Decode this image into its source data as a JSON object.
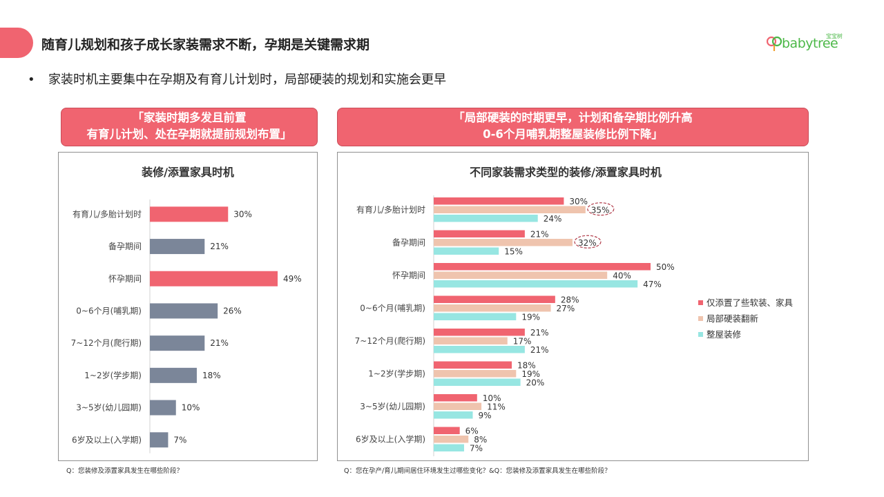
{
  "header": {
    "title": "随育儿规划和孩子成长家装需求不断，孕期是关键需求期",
    "logo_small": "宝宝树",
    "logo_text": "babytree"
  },
  "bullet_text": "家装时机主要集中在孕期及有育儿计划时，局部硬装的规划和实施会更早",
  "callouts": {
    "left": {
      "line1": "「家装时期多发且前置",
      "line2": "有育儿计划、处在孕期就提前规划布置」"
    },
    "right": {
      "line1": "「局部硬装的时期更早，计划和备孕期比例升高",
      "line2": "0-6个月哺乳期整屋装修比例下降」"
    }
  },
  "footnotes": {
    "left": "Q：您装修及添置家具发生在哪些阶段？",
    "right": "Q：您在孕产/育儿期间居住环境发生过哪些变化？&Q：您装修及添置家具发生在哪些阶段？"
  },
  "colors": {
    "accent_red": "#f06470",
    "gray_bar": "#7b8699",
    "peach": "#efc4ae",
    "cyan": "#97e6e2",
    "highlight_circle": "#b03a48"
  },
  "chart_data": [
    {
      "type": "bar",
      "orientation": "horizontal",
      "title": "装修/添置家具时机",
      "categories": [
        "有育儿/多胎计划时",
        "备孕期间",
        "怀孕期间",
        "0~6个月(哺乳期)",
        "7~12个月(爬行期)",
        "1~2岁(学步期)",
        "3~5岁(幼儿园期)",
        "6岁及以上(入学期)"
      ],
      "values": [
        30,
        21,
        49,
        26,
        21,
        18,
        10,
        7
      ],
      "value_labels": [
        "30%",
        "21%",
        "49%",
        "26%",
        "21%",
        "18%",
        "10%",
        "7%"
      ],
      "highlight": [
        true,
        false,
        true,
        false,
        false,
        false,
        false,
        false
      ],
      "unit": "%"
    },
    {
      "type": "bar",
      "orientation": "horizontal",
      "title": "不同家装需求类型的装修/添置家具时机",
      "categories": [
        "有育儿/多胎计划时",
        "备孕期间",
        "怀孕期间",
        "0~6个月(哺乳期)",
        "7~12个月(爬行期)",
        "1~2岁(学步期)",
        "3~5岁(幼儿园期)",
        "6岁及以上(入学期)"
      ],
      "series": [
        {
          "name": "仅添置了些软装、家具",
          "values": [
            30,
            21,
            50,
            28,
            21,
            18,
            10,
            6
          ],
          "labels": [
            "30%",
            "21%",
            "50%",
            "28%",
            "21%",
            "18%",
            "10%",
            "6%"
          ]
        },
        {
          "name": "局部硬装翻新",
          "values": [
            35,
            32,
            40,
            27,
            17,
            19,
            11,
            8
          ],
          "labels": [
            "35%",
            "32%",
            "40%",
            "27%",
            "17%",
            "19%",
            "11%",
            "8%"
          ]
        },
        {
          "name": "整屋装修",
          "values": [
            24,
            15,
            47,
            19,
            21,
            20,
            9,
            7
          ],
          "labels": [
            "24%",
            "15%",
            "47%",
            "19%",
            "21%",
            "20%",
            "9%",
            "7%"
          ]
        }
      ],
      "circled": [
        [
          1,
          0
        ],
        [
          1,
          1
        ]
      ],
      "legend_position": "right",
      "unit": "%"
    }
  ]
}
